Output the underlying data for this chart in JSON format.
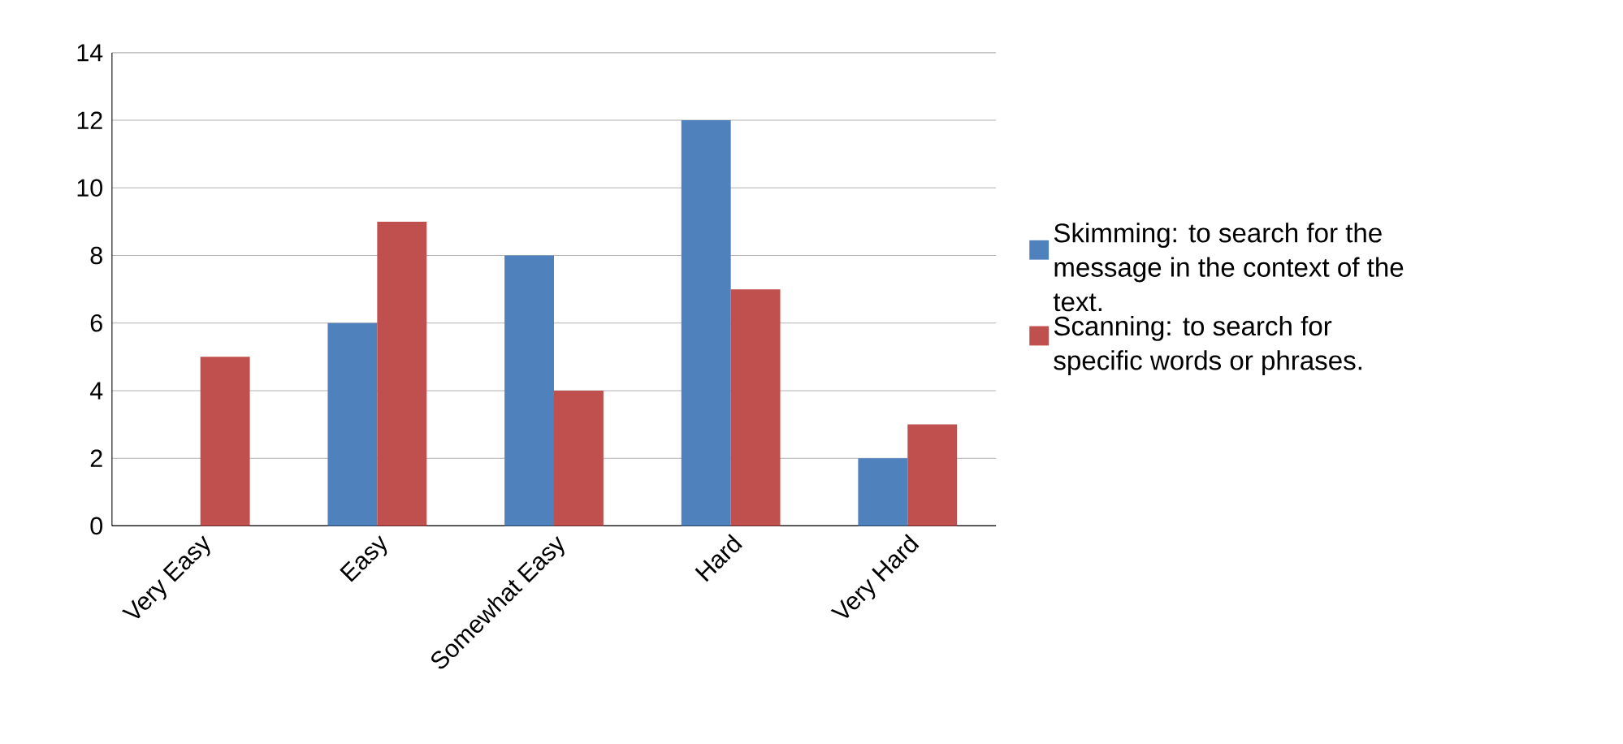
{
  "chart_data": {
    "type": "bar",
    "categories": [
      "Very Easy",
      "Easy",
      "Somewhat Easy",
      "Hard",
      "Very Hard"
    ],
    "series": [
      {
        "name": "Skimming: to search for the message in the context of the text.",
        "color": "#4f81bd",
        "values": [
          0,
          6,
          8,
          12,
          2
        ]
      },
      {
        "name": "Scanning: to search for specific words or phrases.",
        "color": "#c0504d",
        "values": [
          5,
          9,
          4,
          7,
          3
        ]
      }
    ],
    "ylim": [
      0,
      14
    ],
    "yticks": [
      0,
      2,
      4,
      6,
      8,
      10,
      12,
      14
    ],
    "grid": "y",
    "legend": "right"
  }
}
